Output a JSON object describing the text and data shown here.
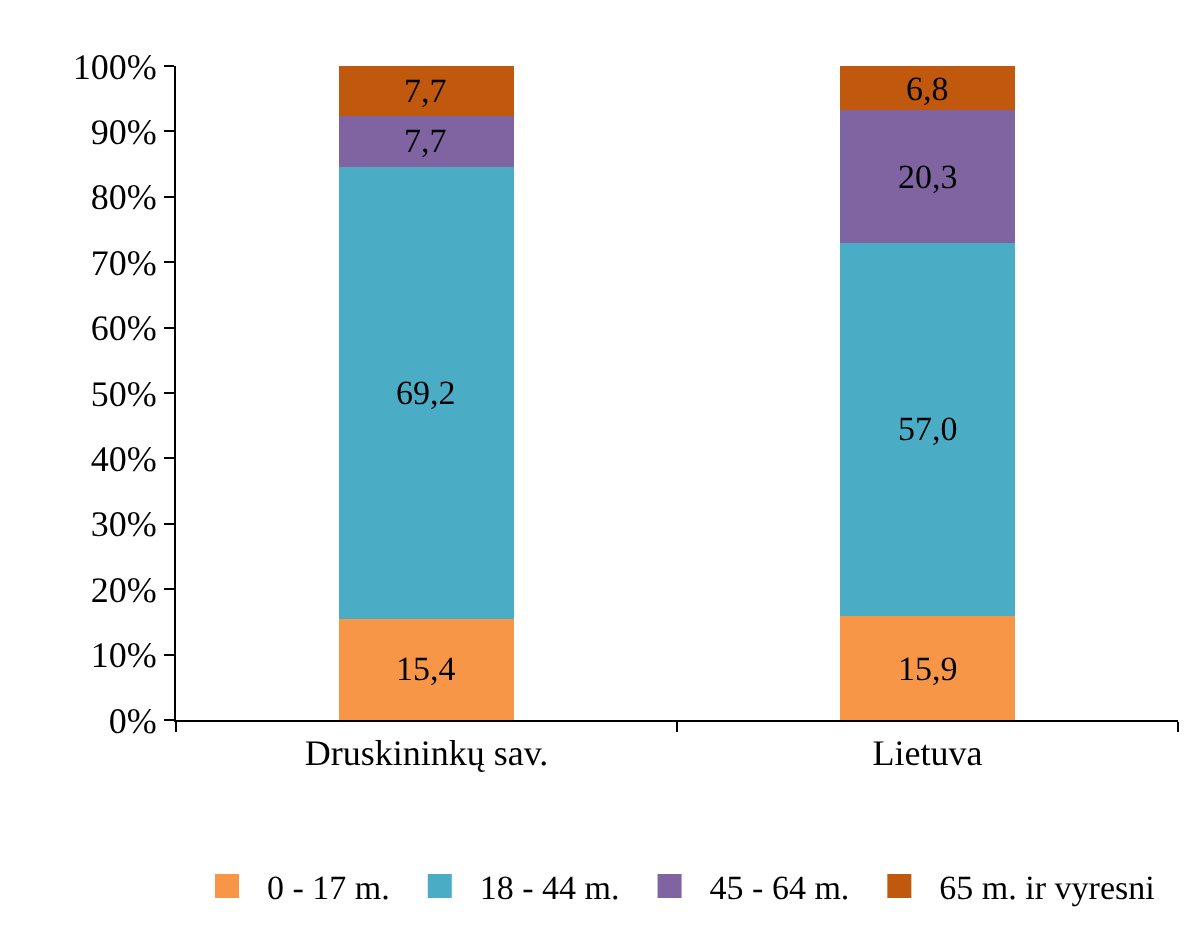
{
  "chart_data": {
    "type": "bar",
    "stacked": true,
    "categories": [
      "Druskininkų sav.",
      "Lietuva"
    ],
    "series": [
      {
        "name": "0 - 17 m.",
        "color": "#f79646",
        "values": [
          15.4,
          15.9
        ],
        "value_labels": [
          "15,4",
          "15,9"
        ]
      },
      {
        "name": "18 - 44 m.",
        "color": "#4bacc6",
        "values": [
          69.2,
          57.0
        ],
        "value_labels": [
          "69,2",
          "57,0"
        ]
      },
      {
        "name": "45 - 64 m.",
        "color": "#8064a2",
        "values": [
          7.7,
          20.3
        ],
        "value_labels": [
          "7,7",
          "20,3"
        ]
      },
      {
        "name": "65 m. ir vyresni",
        "color": "#c0580e",
        "values": [
          7.7,
          6.8
        ],
        "value_labels": [
          "7,7",
          "6,8"
        ]
      }
    ],
    "ylim": [
      0,
      100
    ],
    "yticks": [
      {
        "value": 0,
        "label": "0%"
      },
      {
        "value": 10,
        "label": "10%"
      },
      {
        "value": 20,
        "label": "20%"
      },
      {
        "value": 30,
        "label": "30%"
      },
      {
        "value": 40,
        "label": "40%"
      },
      {
        "value": 50,
        "label": "50%"
      },
      {
        "value": 60,
        "label": "60%"
      },
      {
        "value": 70,
        "label": "70%"
      },
      {
        "value": 80,
        "label": "80%"
      },
      {
        "value": 90,
        "label": "90%"
      },
      {
        "value": 100,
        "label": "100%"
      }
    ],
    "legend": "bottom"
  }
}
